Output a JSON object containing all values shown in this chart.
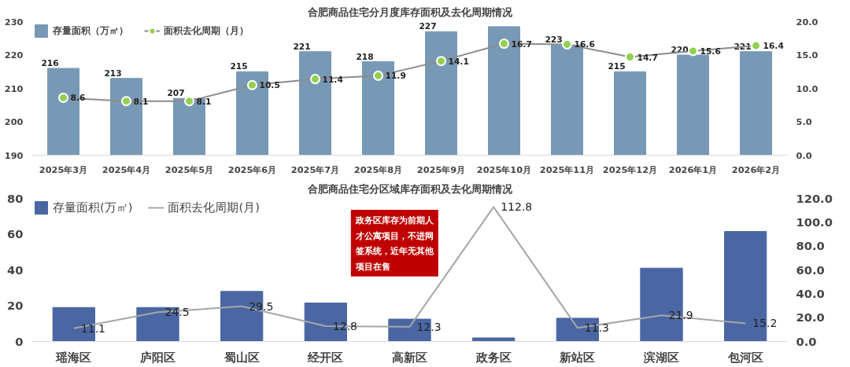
{
  "chart_data": [
    {
      "type": "bar",
      "title": "合肥商品住宅分月度库存面积及去化周期情况",
      "legend": "top left",
      "grid": false,
      "categories": [
        "2025年3月",
        "2025年4月",
        "2025年5月",
        "2025年6月",
        "2025年7月",
        "2025年8月",
        "2025年9月",
        "2025年10月",
        "2025年11月",
        "2025年12月",
        "2026年1月",
        "2026年2月"
      ],
      "series": [
        {
          "name": "存量面积（万㎡）",
          "color": "#7899b5",
          "values": [
            216,
            213,
            207,
            215,
            221,
            218,
            227,
            228.5,
            223,
            215,
            220,
            221
          ],
          "value_labels": [
            "216",
            "213",
            "207",
            "215",
            "221",
            "218",
            "227",
            null,
            "223",
            "215",
            "220",
            "221"
          ]
        },
        {
          "name": "面积去化周期（月）",
          "type": "line",
          "axis": "y2",
          "color": "#8c8c8c",
          "marker": "circle",
          "values": [
            8.6,
            8.1,
            8.1,
            10.5,
            11.4,
            11.9,
            14.1,
            16.7,
            16.6,
            14.7,
            15.6,
            16.4
          ],
          "value_labels": [
            "8.6",
            "8.1",
            "8.1",
            "10.5",
            "11.4",
            "11.9",
            "14.1",
            "16.7",
            "16.6",
            "14.7",
            "15.6",
            "16.4"
          ]
        }
      ],
      "ylim": [
        190,
        230
      ],
      "yticks": [
        190,
        200,
        210,
        220,
        230
      ],
      "y2lim": [
        0,
        20
      ],
      "y2ticks": [
        {
          "value": 0,
          "label": "0.0"
        },
        {
          "value": 5,
          "label": "5.0"
        },
        {
          "value": 10,
          "label": "10.0"
        },
        {
          "value": 15,
          "label": "15.0"
        },
        {
          "value": 20,
          "label": "20.0"
        }
      ]
    },
    {
      "type": "bar",
      "title": "合肥商品住宅分区域库存面积及去化周期情况",
      "legend": "top left",
      "grid": false,
      "categories": [
        "瑶海区",
        "庐阳区",
        "蜀山区",
        "经开区",
        "高新区",
        "政务区",
        "新站区",
        "滨湖区",
        "包河区"
      ],
      "series": [
        {
          "name": "存量面积(万㎡)",
          "color": "#4a67a3",
          "values": [
            19,
            19,
            28,
            21.5,
            12.5,
            2,
            13,
            41,
            61.5
          ]
        },
        {
          "name": "面积去化周期(月)",
          "type": "line",
          "axis": "y2",
          "color": "#a6a6a6",
          "values": [
            11.1,
            24.5,
            29.5,
            12.8,
            12.3,
            112.8,
            11.3,
            21.9,
            15.2
          ],
          "value_labels": [
            "11.1",
            "24.5",
            "29.5",
            "12.8",
            "12.3",
            "112.8",
            "11.3",
            "21.9",
            "15.2"
          ]
        }
      ],
      "ylim": [
        0,
        80
      ],
      "yticks": [
        0,
        20,
        40,
        60,
        80
      ],
      "y2lim": [
        0,
        120
      ],
      "y2ticks": [
        {
          "value": 0,
          "label": "0.0"
        },
        {
          "value": 20,
          "label": "20.0"
        },
        {
          "value": 40,
          "label": "40.0"
        },
        {
          "value": 60,
          "label": "60.0"
        },
        {
          "value": 80,
          "label": "80.0"
        },
        {
          "value": 100,
          "label": "100.0"
        },
        {
          "value": 120,
          "label": "120.0"
        }
      ],
      "annotations": [
        "政务区库存为前期人才公寓项目，不进网签系统，近年无其他项目在售"
      ]
    }
  ]
}
